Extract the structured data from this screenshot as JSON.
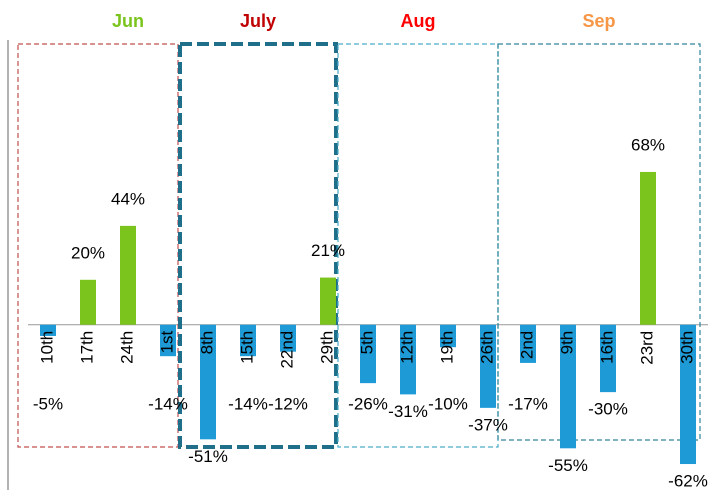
{
  "chart_data": {
    "type": "bar",
    "categories": [
      "10th",
      "17th",
      "24th",
      "1st",
      "8th",
      "15th",
      "22nd",
      "29th",
      "5th",
      "12th",
      "19th",
      "26th",
      "2nd",
      "9th",
      "16th",
      "23rd",
      "30th"
    ],
    "values": [
      -5,
      20,
      44,
      -14,
      -51,
      -14,
      -12,
      21,
      -26,
      -31,
      -10,
      -37,
      -17,
      -55,
      -30,
      68,
      -62
    ],
    "value_labels": [
      "-5%",
      "20%",
      "44%",
      "-14%",
      "-51%",
      "-14%",
      "-12%",
      "21%",
      "-26%",
      "-31%",
      "-10%",
      "-37%",
      "-17%",
      "-55%",
      "-30%",
      "68%",
      "-62%"
    ],
    "positive_color": "#7ac41d",
    "negative_color": "#1e9bd7",
    "ylim": [
      -70,
      80
    ],
    "months": [
      {
        "name": "Jun",
        "color": "#7ac41d",
        "box_color": "#c0504d",
        "count": 4
      },
      {
        "name": "July",
        "color": "#c00000",
        "box_color": "#1f6f8b",
        "count": 4
      },
      {
        "name": "Aug",
        "color": "#ff0000",
        "box_color": "#4bacc6",
        "count": 4
      },
      {
        "name": "Sep",
        "color": "#f79646",
        "box_color": "#31859c",
        "count": 5
      }
    ]
  }
}
